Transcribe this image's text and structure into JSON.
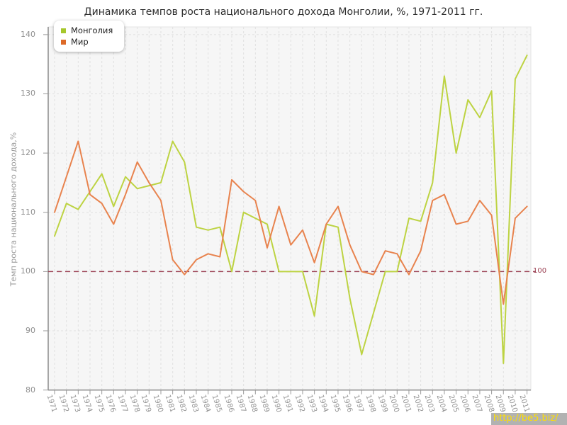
{
  "title": "Динамика темпов роста национального дохода Монголии, %, 1971-2011 гг.",
  "y_axis_title": "Темп роста национального дохода,%",
  "reference_line": {
    "value": 100,
    "label": "100",
    "color": "#9c4355"
  },
  "watermark": "http://be5.biz/",
  "legend": [
    {
      "label": "Монголия",
      "color": "#a6c72c"
    },
    {
      "label": "Мир",
      "color": "#dd6a28"
    }
  ],
  "colors": {
    "plot_background": "#f6f6f6",
    "gridline": "#e0e0e0",
    "axis": "#8c8c8c",
    "tick": "#9a9a9a",
    "plot_border": "#e4e4e4"
  },
  "chart_data": {
    "type": "line",
    "title": "Динамика темпов роста национального дохода Монголии, %, 1971-2011 гг.",
    "xlabel": "",
    "ylabel": "Темп роста национального дохода,%",
    "ylim": [
      80,
      140
    ],
    "yticks": [
      80,
      90,
      100,
      110,
      120,
      130,
      140
    ],
    "grid": true,
    "legend_position": "top-left",
    "reference_value": 100,
    "x": [
      1971,
      1972,
      1973,
      1974,
      1975,
      1976,
      1977,
      1978,
      1979,
      1980,
      1981,
      1982,
      1983,
      1984,
      1985,
      1986,
      1987,
      1988,
      1989,
      1990,
      1991,
      1992,
      1993,
      1994,
      1995,
      1996,
      1997,
      1998,
      1999,
      2000,
      2001,
      2002,
      2003,
      2004,
      2005,
      2006,
      2007,
      2008,
      2009,
      2010,
      2011
    ],
    "series": [
      {
        "name": "Монголия",
        "color": "#bdd342",
        "values": [
          106,
          111.5,
          110.5,
          113.5,
          116.5,
          111,
          116,
          114,
          114.5,
          115,
          122,
          118.5,
          107.5,
          107,
          107.5,
          100,
          110,
          109,
          108,
          100,
          100,
          100,
          92.5,
          108,
          107.5,
          95.5,
          86,
          93,
          100,
          100,
          109,
          108.5,
          115,
          133,
          120,
          129,
          126,
          130.5,
          84.5,
          132.5,
          136.5
        ]
      },
      {
        "name": "Мир",
        "color": "#e8834e",
        "values": [
          110,
          116,
          122,
          113,
          111.5,
          108,
          113,
          118.5,
          115,
          112,
          102,
          99.5,
          102,
          103,
          102.5,
          115.5,
          113.5,
          112,
          104,
          111,
          104.5,
          107,
          101.5,
          108,
          111,
          104.5,
          100,
          99.5,
          103.5,
          103,
          99.5,
          103.5,
          112,
          113,
          108,
          108.5,
          112,
          109.5,
          94.5,
          109,
          111
        ]
      }
    ]
  }
}
